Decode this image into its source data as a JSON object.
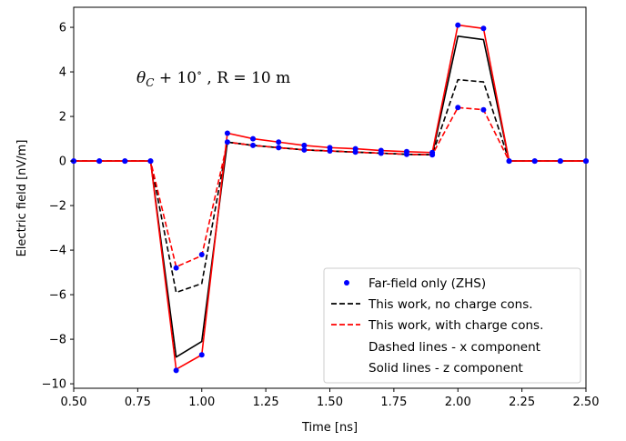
{
  "chart_data": {
    "type": "line",
    "annotation": {
      "prefix_symbol": "θ",
      "prefix_sub": "C",
      "middle": " + 10",
      "degree": "∘",
      "tail": " , R = 10 m"
    },
    "xlabel": "Time [ns]",
    "ylabel": "Electric field [nV/m]",
    "xlim": [
      0.5,
      2.5
    ],
    "ylim": [
      -10.2,
      6.9
    ],
    "xticks": [
      0.5,
      0.75,
      1.0,
      1.25,
      1.5,
      1.75,
      2.0,
      2.25,
      2.5
    ],
    "xtick_labels": [
      "0.50",
      "0.75",
      "1.00",
      "1.25",
      "1.50",
      "1.75",
      "2.00",
      "2.25",
      "2.50"
    ],
    "yticks": [
      -10,
      -8,
      -6,
      -4,
      -2,
      0,
      2,
      4,
      6
    ],
    "ytick_labels": [
      "−10",
      "−8",
      "−6",
      "−4",
      "−2",
      "0",
      "2",
      "4",
      "6"
    ],
    "grid": false,
    "legend_position": "lower-right",
    "legend": [
      {
        "label": "Far-field only (ZHS)",
        "style": "dots",
        "color": "#0000ff"
      },
      {
        "label": "This work, no charge cons.",
        "style": "dashed",
        "color": "#000000"
      },
      {
        "label": "This work, with charge cons.",
        "style": "dashed",
        "color": "#ff0000"
      },
      {
        "label": "Dashed lines - x component",
        "style": "none"
      },
      {
        "label": "Solid lines - z component",
        "style": "none"
      }
    ],
    "x": [
      0.5,
      0.6,
      0.7,
      0.8,
      0.9,
      1.0,
      1.1,
      1.2,
      1.3,
      1.4,
      1.5,
      1.6,
      1.7,
      1.8,
      1.9,
      2.0,
      2.1,
      2.2,
      2.3,
      2.4,
      2.5
    ],
    "series": [
      {
        "name": "Far-field only (ZHS)",
        "component": "x",
        "style": "dots",
        "color": "#0000ff",
        "values": [
          0,
          0,
          0,
          0,
          -4.8,
          -4.2,
          0.85,
          0.7,
          0.6,
          0.5,
          0.45,
          0.4,
          0.35,
          0.3,
          0.28,
          2.4,
          2.3,
          0,
          0,
          0,
          0
        ]
      },
      {
        "name": "Far-field only (ZHS)",
        "component": "z",
        "style": "dots",
        "color": "#0000ff",
        "values": [
          0,
          0,
          0,
          0,
          -9.4,
          -8.7,
          1.25,
          1.0,
          0.85,
          0.7,
          0.6,
          0.55,
          0.47,
          0.42,
          0.38,
          6.1,
          5.95,
          0,
          0,
          0,
          0
        ]
      },
      {
        "name": "This work, no charge cons.",
        "component": "x",
        "style": "dashed",
        "color": "#000000",
        "values": [
          0,
          0,
          0,
          0,
          -5.9,
          -5.5,
          0.85,
          0.7,
          0.6,
          0.5,
          0.45,
          0.4,
          0.35,
          0.3,
          0.28,
          3.65,
          3.55,
          0,
          0,
          0,
          0
        ]
      },
      {
        "name": "This work, no charge cons.",
        "component": "z",
        "style": "solid",
        "color": "#000000",
        "values": [
          0,
          0,
          0,
          0,
          -8.8,
          -8.1,
          0.85,
          0.7,
          0.6,
          0.5,
          0.45,
          0.4,
          0.35,
          0.3,
          0.28,
          5.6,
          5.45,
          0,
          0,
          0,
          0
        ]
      },
      {
        "name": "This work, with charge cons.",
        "component": "x",
        "style": "dashed",
        "color": "#ff0000",
        "values": [
          0,
          0,
          0,
          0,
          -4.75,
          -4.25,
          0.85,
          0.7,
          0.6,
          0.5,
          0.45,
          0.4,
          0.35,
          0.3,
          0.28,
          2.4,
          2.3,
          0,
          0,
          0,
          0
        ]
      },
      {
        "name": "This work, with charge cons.",
        "component": "z",
        "style": "solid",
        "color": "#ff0000",
        "values": [
          0,
          0,
          0,
          0,
          -9.35,
          -8.7,
          1.25,
          1.0,
          0.85,
          0.7,
          0.6,
          0.55,
          0.47,
          0.42,
          0.38,
          6.1,
          5.95,
          0,
          0,
          0,
          0
        ]
      }
    ]
  }
}
